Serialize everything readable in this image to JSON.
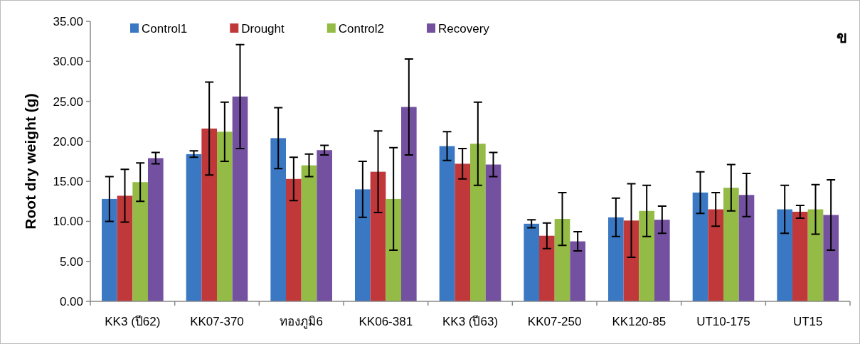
{
  "chart_data": {
    "type": "bar",
    "ylabel": "Root dry weight (g)",
    "annotations": [
      "ข"
    ],
    "categories": [
      "KK3 (ปี62)",
      "KK07-370",
      "ทองภูมิ6",
      "KK06-381",
      "KK3 (ปี63)",
      "KK07-250",
      "KK120-85",
      "UT10-175",
      "UT15"
    ],
    "series": [
      {
        "name": "Control1",
        "color": "#3a78c4",
        "values": [
          12.8,
          18.4,
          20.4,
          14.0,
          19.4,
          9.7,
          10.5,
          13.6,
          11.5
        ],
        "errors": [
          2.8,
          0.4,
          3.8,
          3.5,
          1.8,
          0.5,
          2.4,
          2.6,
          3.0
        ]
      },
      {
        "name": "Drought",
        "color": "#c0383a",
        "values": [
          13.2,
          21.6,
          15.3,
          16.2,
          17.2,
          8.2,
          10.1,
          11.5,
          11.2
        ],
        "errors": [
          3.3,
          5.8,
          2.7,
          5.1,
          1.9,
          1.6,
          4.6,
          2.1,
          0.8
        ]
      },
      {
        "name": "Control2",
        "color": "#93bb45",
        "values": [
          14.9,
          21.2,
          17.0,
          12.8,
          19.7,
          10.3,
          11.3,
          14.2,
          11.5
        ],
        "errors": [
          2.4,
          3.7,
          1.4,
          6.4,
          5.2,
          3.3,
          3.2,
          2.9,
          3.1
        ]
      },
      {
        "name": "Recovery",
        "color": "#7451a0",
        "values": [
          17.9,
          25.6,
          18.9,
          24.3,
          17.1,
          7.5,
          10.2,
          13.3,
          10.8
        ],
        "errors": [
          0.7,
          6.5,
          0.6,
          6.0,
          1.5,
          1.2,
          1.7,
          2.7,
          4.4
        ]
      }
    ],
    "ylim": [
      0,
      35
    ],
    "yticks": [
      {
        "value": 0,
        "label": "0.00"
      },
      {
        "value": 5,
        "label": "5.00"
      },
      {
        "value": 10,
        "label": "10.00"
      },
      {
        "value": 15,
        "label": "15.00"
      },
      {
        "value": 20,
        "label": "20.00"
      },
      {
        "value": 25,
        "label": "25.00"
      },
      {
        "value": 30,
        "label": "30.00"
      },
      {
        "value": 35,
        "label": "35.00"
      }
    ],
    "legend": "top left"
  }
}
